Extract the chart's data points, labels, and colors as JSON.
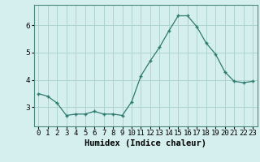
{
  "x": [
    0,
    1,
    2,
    3,
    4,
    5,
    6,
    7,
    8,
    9,
    10,
    11,
    12,
    13,
    14,
    15,
    16,
    17,
    18,
    19,
    20,
    21,
    22,
    23
  ],
  "y": [
    3.5,
    3.4,
    3.15,
    2.7,
    2.75,
    2.75,
    2.85,
    2.75,
    2.75,
    2.7,
    3.2,
    4.15,
    4.7,
    5.2,
    5.8,
    6.35,
    6.35,
    5.95,
    5.35,
    4.95,
    4.3,
    3.95,
    3.9,
    3.95
  ],
  "line_color": "#2d7a6e",
  "marker": "+",
  "marker_size": 3,
  "marker_linewidth": 1.0,
  "bg_color": "#d4efee",
  "grid_color": "#aed4d0",
  "axis_bg": "#d4efee",
  "xlabel": "Humidex (Indice chaleur)",
  "xlabel_fontsize": 7.5,
  "tick_fontsize": 6.5,
  "xlim": [
    -0.5,
    23.5
  ],
  "ylim": [
    2.3,
    6.75
  ],
  "yticks": [
    3,
    4,
    5,
    6
  ],
  "xtick_labels": [
    "0",
    "1",
    "2",
    "3",
    "4",
    "5",
    "6",
    "7",
    "8",
    "9",
    "10",
    "11",
    "12",
    "13",
    "14",
    "15",
    "16",
    "17",
    "18",
    "19",
    "20",
    "21",
    "22",
    "23"
  ]
}
